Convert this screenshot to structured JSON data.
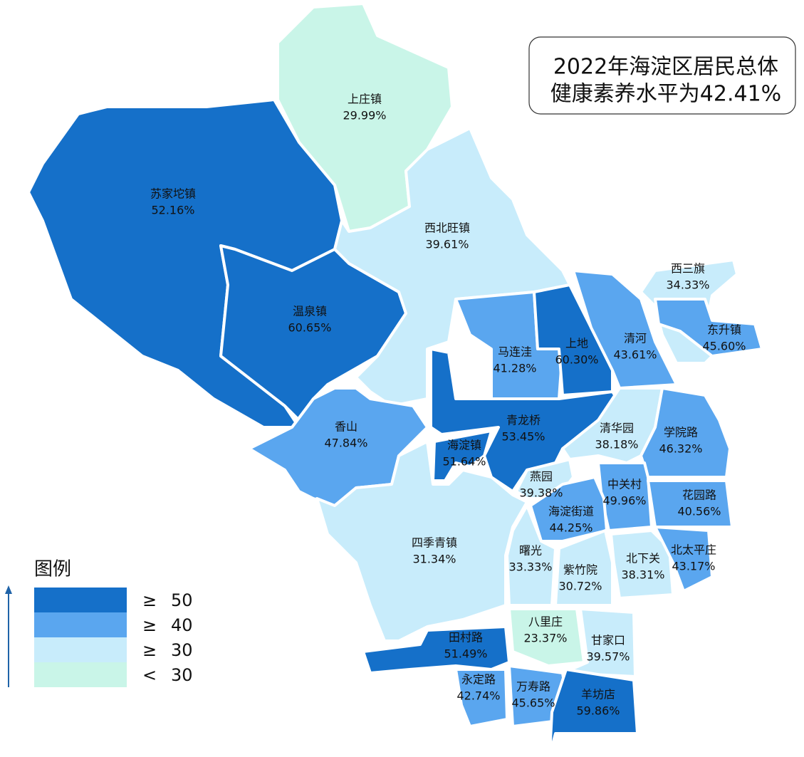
{
  "title_lines": [
    "2022年海淀区居民总体",
    "健康素养水平为42.41%"
  ],
  "legend": {
    "title": "图例",
    "items": [
      {
        "symbol": "≥",
        "threshold": 50,
        "color": "#1570c9"
      },
      {
        "symbol": "≥",
        "threshold": 40,
        "color": "#5aa6ef"
      },
      {
        "symbol": "≥",
        "threshold": 30,
        "color": "#c8ecfb"
      },
      {
        "symbol": "<",
        "threshold": 30,
        "color": "#c9f5e8"
      }
    ]
  },
  "regions": [
    {
      "name": "上庄镇",
      "value": 29.99,
      "value_label": "29.99%"
    },
    {
      "name": "苏家坨镇",
      "value": 52.16,
      "value_label": "52.16%"
    },
    {
      "name": "温泉镇",
      "value": 60.65,
      "value_label": "60.65%"
    },
    {
      "name": "西北旺镇",
      "value": 39.61,
      "value_label": "39.61%"
    },
    {
      "name": "马连洼",
      "value": 41.28,
      "value_label": "41.28%"
    },
    {
      "name": "上地",
      "value": 60.3,
      "value_label": "60.30%"
    },
    {
      "name": "清河",
      "value": 43.61,
      "value_label": "43.61%"
    },
    {
      "name": "西三旗",
      "value": 34.33,
      "value_label": "34.33%"
    },
    {
      "name": "东升镇",
      "value": 45.6,
      "value_label": "45.60%"
    },
    {
      "name": "香山",
      "value": 47.84,
      "value_label": "47.84%"
    },
    {
      "name": "青龙桥",
      "value": 53.45,
      "value_label": "53.45%"
    },
    {
      "name": "海淀镇",
      "value": 51.64,
      "value_label": "51.64%"
    },
    {
      "name": "清华园",
      "value": 38.18,
      "value_label": "38.18%"
    },
    {
      "name": "学院路",
      "value": 46.32,
      "value_label": "46.32%"
    },
    {
      "name": "燕园",
      "value": 39.38,
      "value_label": "39.38%"
    },
    {
      "name": "中关村",
      "value": 49.96,
      "value_label": "49.96%"
    },
    {
      "name": "花园路",
      "value": 40.56,
      "value_label": "40.56%"
    },
    {
      "name": "海淀街道",
      "value": 44.25,
      "value_label": "44.25%"
    },
    {
      "name": "四季青镇",
      "value": 31.34,
      "value_label": "31.34%"
    },
    {
      "name": "曙光",
      "value": 33.33,
      "value_label": "33.33%"
    },
    {
      "name": "紫竹院",
      "value": 30.72,
      "value_label": "30.72%"
    },
    {
      "name": "北下关",
      "value": 38.31,
      "value_label": "38.31%"
    },
    {
      "name": "北太平庄",
      "value": 43.17,
      "value_label": "43.17%"
    },
    {
      "name": "八里庄",
      "value": 23.37,
      "value_label": "23.37%"
    },
    {
      "name": "甘家口",
      "value": 39.57,
      "value_label": "39.57%"
    },
    {
      "name": "田村路",
      "value": 51.49,
      "value_label": "51.49%"
    },
    {
      "name": "永定路",
      "value": 42.74,
      "value_label": "42.74%"
    },
    {
      "name": "万寿路",
      "value": 45.65,
      "value_label": "45.65%"
    },
    {
      "name": "羊坊店",
      "value": 59.86,
      "value_label": "59.86%"
    }
  ]
}
